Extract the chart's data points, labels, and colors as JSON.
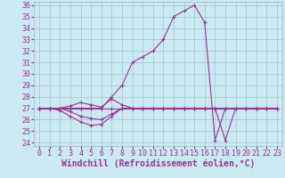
{
  "bg_color": "#cbe9f0",
  "line_color": "#993399",
  "xlim": [
    0,
    23
  ],
  "ylim": [
    24,
    36
  ],
  "yticks": [
    24,
    25,
    26,
    27,
    28,
    29,
    30,
    31,
    32,
    33,
    34,
    35,
    36
  ],
  "xticks": [
    0,
    1,
    2,
    3,
    4,
    5,
    6,
    7,
    8,
    9,
    10,
    11,
    12,
    13,
    14,
    15,
    16,
    17,
    18,
    19,
    20,
    21,
    22,
    23
  ],
  "xlabel": "Windchill (Refroidissement éolien,°C)",
  "lines": [
    {
      "x": [
        0,
        1,
        2,
        3,
        4,
        5,
        6,
        7,
        8,
        9,
        10,
        11,
        12,
        13,
        14,
        15,
        16,
        17,
        18,
        19,
        20,
        21,
        22,
        23
      ],
      "y": [
        27.0,
        27.0,
        27.0,
        27.0,
        27.0,
        27.0,
        27.0,
        27.0,
        27.0,
        27.0,
        27.0,
        27.0,
        27.0,
        27.0,
        27.0,
        27.0,
        27.0,
        27.0,
        27.0,
        27.0,
        27.0,
        27.0,
        27.0,
        27.0
      ]
    },
    {
      "x": [
        0,
        1,
        2,
        3,
        4,
        5,
        6,
        7,
        8,
        9,
        10,
        11,
        12,
        13,
        14,
        15,
        16,
        17,
        18,
        19,
        20,
        21,
        22,
        23
      ],
      "y": [
        27.0,
        27.0,
        27.0,
        27.2,
        27.5,
        27.3,
        27.1,
        27.8,
        27.3,
        27.0,
        27.0,
        27.0,
        27.0,
        27.0,
        27.0,
        27.0,
        27.0,
        27.0,
        27.0,
        27.0,
        27.0,
        27.0,
        27.0,
        27.0
      ]
    },
    {
      "x": [
        0,
        1,
        2,
        3,
        4,
        5,
        6,
        7,
        8,
        9,
        10,
        11,
        12,
        13,
        14,
        15,
        16,
        17,
        18,
        19,
        20,
        21,
        22,
        23
      ],
      "y": [
        27.0,
        27.0,
        27.0,
        26.7,
        26.3,
        26.1,
        26.0,
        26.5,
        27.0,
        27.0,
        27.0,
        27.0,
        27.0,
        27.0,
        27.0,
        27.0,
        27.0,
        27.0,
        27.0,
        27.0,
        27.0,
        27.0,
        27.0,
        27.0
      ]
    },
    {
      "x": [
        0,
        1,
        2,
        3,
        4,
        5,
        6,
        7,
        8,
        9,
        10,
        11,
        12,
        13,
        14,
        15,
        16,
        17,
        18,
        19,
        20,
        21,
        22,
        23
      ],
      "y": [
        27.0,
        27.0,
        26.8,
        26.3,
        25.8,
        25.5,
        25.6,
        26.3,
        27.0,
        27.0,
        27.0,
        27.0,
        27.0,
        27.0,
        27.0,
        27.0,
        27.0,
        27.0,
        24.2,
        27.0,
        27.0,
        27.0,
        27.0,
        27.0
      ]
    },
    {
      "x": [
        0,
        1,
        2,
        3,
        4,
        5,
        6,
        7,
        8,
        9,
        10,
        11,
        12,
        13,
        14,
        15,
        16,
        17,
        18,
        19,
        20,
        21,
        22,
        23
      ],
      "y": [
        27.0,
        27.0,
        27.0,
        27.0,
        27.0,
        27.0,
        27.0,
        28.0,
        29.0,
        31.0,
        31.5,
        32.0,
        33.0,
        35.0,
        35.5,
        36.0,
        34.5,
        24.2,
        27.0,
        27.0,
        27.0,
        27.0,
        27.0,
        27.0
      ]
    }
  ],
  "grid_color": "#99bbcc",
  "tick_fontsize": 6.0,
  "xlabel_fontsize": 7.0
}
